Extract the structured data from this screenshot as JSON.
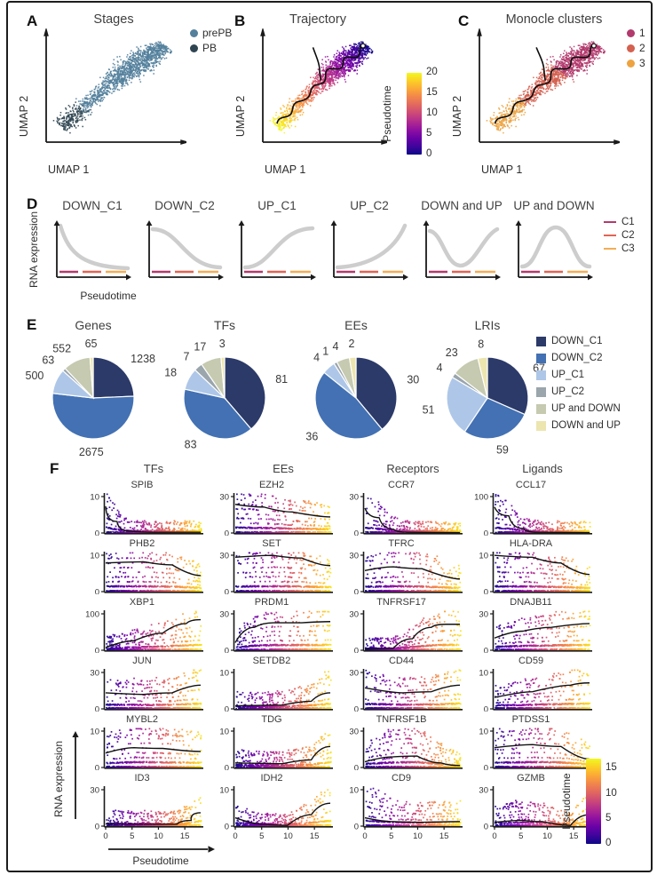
{
  "figure_caption_letters": [
    "A",
    "B",
    "C",
    "D",
    "E",
    "F"
  ],
  "colors": {
    "plasma": [
      "#0d0887",
      "#46039f",
      "#7201a8",
      "#9c179e",
      "#bd3786",
      "#d8576b",
      "#ed7953",
      "#fa9e3b",
      "#fdc926",
      "#f0f921"
    ],
    "axis": "#1a1a1a",
    "trend_line": "#111111",
    "pattern_curve": "#cdcdcd"
  },
  "chart_data": [
    {
      "panel": "A",
      "type": "scatter",
      "title": "Stages",
      "xlabel": "UMAP 1",
      "ylabel": "UMAP 2",
      "legend": [
        {
          "label": "prePB",
          "color": "#54809c"
        },
        {
          "label": "PB",
          "color": "#2e4450"
        }
      ],
      "description": "UMAP embedding of cells colored by stage; PB cells in lower-left lobe, prePB cells elsewhere"
    },
    {
      "panel": "B",
      "type": "scatter",
      "title": "Trajectory",
      "xlabel": "UMAP 1",
      "ylabel": "UMAP 2",
      "colorbar": {
        "label": "Pseudotime",
        "min": 0,
        "max": 20,
        "ticks": [
          20,
          15,
          10,
          5,
          0
        ]
      },
      "description": "UMAP colored by pseudotime (0 = dark blue at top-right, 20 = yellow at bottom-left) with black principal-graph trajectory"
    },
    {
      "panel": "C",
      "type": "scatter",
      "title": "Monocle clusters",
      "xlabel": "UMAP 1",
      "ylabel": "UMAP 2",
      "legend": [
        {
          "label": "1",
          "color": "#b23a6c"
        },
        {
          "label": "2",
          "color": "#d4604f"
        },
        {
          "label": "3",
          "color": "#eda340"
        }
      ],
      "description": "UMAP colored by Monocle cluster: 1 top-right, 2 middle, 3 bottom-left; black trajectory overlaid"
    },
    {
      "panel": "D",
      "type": "line",
      "ylabel": "RNA expression",
      "xlabel": "Pseudotime",
      "subplots": [
        {
          "title": "DOWN_C1",
          "pattern": "decay"
        },
        {
          "title": "DOWN_C2",
          "pattern": "sigmoid_down"
        },
        {
          "title": "UP_C1",
          "pattern": "sigmoid_up"
        },
        {
          "title": "UP_C2",
          "pattern": "exp_up"
        },
        {
          "title": "DOWN and UP",
          "pattern": "valley"
        },
        {
          "title": "UP and DOWN",
          "pattern": "bell"
        }
      ],
      "legend": [
        {
          "label": "C1",
          "color": "#b23a6c"
        },
        {
          "label": "C2",
          "color": "#e06455"
        },
        {
          "label": "C3",
          "color": "#f2ae57"
        }
      ]
    },
    {
      "panel": "E",
      "type": "pie",
      "categories": [
        "DOWN_C1",
        "DOWN_C2",
        "UP_C1",
        "UP_C2",
        "UP and DOWN",
        "DOWN and UP"
      ],
      "category_colors": [
        "#2c3a69",
        "#4371b3",
        "#aec7e8",
        "#9aa5ac",
        "#c5cab0",
        "#ede5af"
      ],
      "pies": [
        {
          "title": "Genes",
          "values": [
            1238,
            2675,
            500,
            63,
            552,
            65
          ]
        },
        {
          "title": "TFs",
          "values": [
            81,
            83,
            18,
            7,
            17,
            3
          ]
        },
        {
          "title": "EEs",
          "values": [
            30,
            36,
            4,
            1,
            4,
            2
          ]
        },
        {
          "title": "LRIs",
          "values": [
            67,
            59,
            51,
            4,
            23,
            8
          ]
        }
      ]
    },
    {
      "panel": "F",
      "type": "scatter",
      "columns": [
        "TFs",
        "EEs",
        "Receptors",
        "Ligands"
      ],
      "xlabel": "Pseudotime",
      "ylabel": "RNA expression",
      "xticks": [
        0,
        5,
        10,
        15
      ],
      "xmax": 18,
      "colorbar": {
        "label": "Pseudotime",
        "ticks": [
          15,
          10,
          5,
          0
        ],
        "max": 17
      },
      "genes": [
        {
          "name": "SPIB",
          "ymax": 10,
          "trend": [
            [
              0,
              0.7
            ],
            [
              0.12,
              0.3
            ],
            [
              0.25,
              0.05
            ],
            [
              0.5,
              0.02
            ],
            [
              1,
              0.02
            ]
          ]
        },
        {
          "name": "EZH2",
          "ymax": 30,
          "trend": [
            [
              0,
              0.75
            ],
            [
              0.3,
              0.68
            ],
            [
              0.6,
              0.55
            ],
            [
              1,
              0.42
            ]
          ]
        },
        {
          "name": "CCR7",
          "ymax": 30,
          "trend": [
            [
              0,
              0.65
            ],
            [
              0.15,
              0.4
            ],
            [
              0.3,
              0.1
            ],
            [
              0.45,
              0.02
            ],
            [
              1,
              0.01
            ]
          ]
        },
        {
          "name": "CCL17",
          "ymax": 100,
          "trend": [
            [
              0,
              0.68
            ],
            [
              0.15,
              0.45
            ],
            [
              0.3,
              0.12
            ],
            [
              0.45,
              0.02
            ],
            [
              1,
              0.01
            ]
          ]
        },
        {
          "name": "PHB2",
          "ymax": 10,
          "trend": [
            [
              0,
              0.75
            ],
            [
              0.4,
              0.78
            ],
            [
              0.7,
              0.7
            ],
            [
              1,
              0.42
            ]
          ]
        },
        {
          "name": "SET",
          "ymax": 30,
          "trend": [
            [
              0,
              0.9
            ],
            [
              0.4,
              0.95
            ],
            [
              0.7,
              0.88
            ],
            [
              1,
              0.68
            ]
          ]
        },
        {
          "name": "TFRC",
          "ymax": 30,
          "trend": [
            [
              0,
              0.55
            ],
            [
              0.3,
              0.65
            ],
            [
              0.6,
              0.6
            ],
            [
              1,
              0.33
            ]
          ]
        },
        {
          "name": "HLA-DRA",
          "ymax": 10,
          "trend": [
            [
              0,
              0.95
            ],
            [
              0.4,
              0.9
            ],
            [
              0.7,
              0.75
            ],
            [
              1,
              0.45
            ]
          ]
        },
        {
          "name": "XBP1",
          "ymax": 100,
          "trend": [
            [
              0,
              0.07
            ],
            [
              0.3,
              0.25
            ],
            [
              0.6,
              0.45
            ],
            [
              0.85,
              0.7
            ],
            [
              1,
              0.8
            ]
          ]
        },
        {
          "name": "PRDM1",
          "ymax": 30,
          "trend": [
            [
              0,
              0.2
            ],
            [
              0.2,
              0.6
            ],
            [
              0.4,
              0.72
            ],
            [
              0.7,
              0.72
            ],
            [
              1,
              0.75
            ]
          ]
        },
        {
          "name": "TNFRSF17",
          "ymax": 30,
          "trend": [
            [
              0,
              0.03
            ],
            [
              0.3,
              0.05
            ],
            [
              0.5,
              0.3
            ],
            [
              0.7,
              0.6
            ],
            [
              0.85,
              0.68
            ],
            [
              1,
              0.68
            ]
          ]
        },
        {
          "name": "DNAJB11",
          "ymax": 30,
          "trend": [
            [
              0,
              0.32
            ],
            [
              0.3,
              0.5
            ],
            [
              0.6,
              0.6
            ],
            [
              1,
              0.7
            ]
          ]
        },
        {
          "name": "JUN",
          "ymax": 30,
          "trend": [
            [
              0,
              0.42
            ],
            [
              0.4,
              0.38
            ],
            [
              0.7,
              0.42
            ],
            [
              1,
              0.62
            ]
          ]
        },
        {
          "name": "SETDB2",
          "ymax": 10,
          "trend": [
            [
              0,
              0.08
            ],
            [
              0.5,
              0.1
            ],
            [
              0.8,
              0.2
            ],
            [
              1,
              0.42
            ]
          ]
        },
        {
          "name": "CD44",
          "ymax": 30,
          "trend": [
            [
              0,
              0.55
            ],
            [
              0.4,
              0.42
            ],
            [
              0.7,
              0.45
            ],
            [
              1,
              0.62
            ]
          ]
        },
        {
          "name": "CD59",
          "ymax": 10,
          "trend": [
            [
              0,
              0.3
            ],
            [
              0.4,
              0.45
            ],
            [
              0.8,
              0.62
            ],
            [
              1,
              0.68
            ]
          ]
        },
        {
          "name": "MYBL2",
          "ymax": 10,
          "trend": [
            [
              0,
              0.38
            ],
            [
              0.3,
              0.52
            ],
            [
              0.6,
              0.5
            ],
            [
              1,
              0.42
            ]
          ]
        },
        {
          "name": "TDG",
          "ymax": 10,
          "trend": [
            [
              0,
              0.12
            ],
            [
              0.5,
              0.1
            ],
            [
              0.8,
              0.2
            ],
            [
              1,
              0.55
            ]
          ]
        },
        {
          "name": "TNFRSF1B",
          "ymax": 30,
          "trend": [
            [
              0,
              0.15
            ],
            [
              0.3,
              0.28
            ],
            [
              0.55,
              0.3
            ],
            [
              0.8,
              0.12
            ],
            [
              1,
              0.05
            ]
          ]
        },
        {
          "name": "PTDSS1",
          "ymax": 10,
          "trend": [
            [
              0,
              0.52
            ],
            [
              0.4,
              0.6
            ],
            [
              0.7,
              0.55
            ],
            [
              1,
              0.22
            ]
          ]
        },
        {
          "name": "ID3",
          "ymax": 30,
          "trend": [
            [
              0,
              0.06
            ],
            [
              0.5,
              0.05
            ],
            [
              0.75,
              0.05
            ],
            [
              0.9,
              0.15
            ],
            [
              1,
              0.35
            ]
          ]
        },
        {
          "name": "IDH2",
          "ymax": 10,
          "trend": [
            [
              0,
              0.22
            ],
            [
              0.3,
              0.05
            ],
            [
              0.55,
              0.02
            ],
            [
              0.8,
              0.3
            ],
            [
              1,
              0.6
            ]
          ]
        },
        {
          "name": "CD9",
          "ymax": 10,
          "trend": [
            [
              0,
              0.22
            ],
            [
              0.3,
              0.12
            ],
            [
              0.6,
              0.1
            ],
            [
              1,
              0.12
            ]
          ]
        },
        {
          "name": "GZMB",
          "ymax": 30,
          "trend": [
            [
              0,
              0.1
            ],
            [
              0.3,
              0.15
            ],
            [
              0.5,
              0.12
            ],
            [
              0.8,
              0.02
            ],
            [
              1,
              0.3
            ]
          ]
        }
      ]
    }
  ]
}
